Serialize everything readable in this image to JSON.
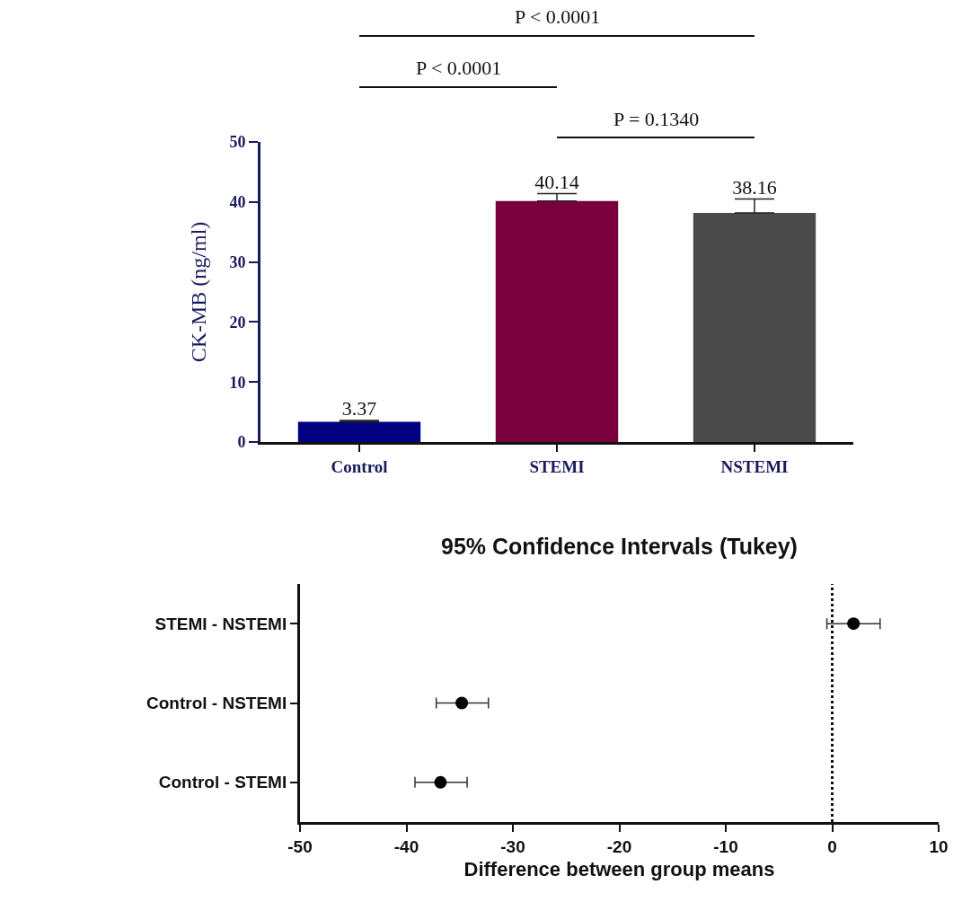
{
  "chart_data": [
    {
      "type": "bar",
      "categories": [
        "Control",
        "STEMI",
        "NSTEMI"
      ],
      "values": [
        3.37,
        40.14,
        38.16
      ],
      "colors": [
        "#000080",
        "#7a003c",
        "#4a4a4a"
      ],
      "errors": [
        [
          3.37,
          3.6
        ],
        [
          40.14,
          41.4
        ],
        [
          38.16,
          40.5
        ]
      ],
      "data_labels": true,
      "ylabel": "CK-MB (ng/ml)",
      "ylim": [
        0,
        50
      ],
      "yticks": [
        0,
        10,
        20,
        30,
        40,
        50
      ],
      "annotations": [
        "P < 0.0001",
        "P < 0.0001",
        "P = 0.1340"
      ]
    },
    {
      "type": "scatter",
      "title": "95% Confidence Intervals (Tukey)",
      "categories": [
        "STEMI - NSTEMI",
        "Control - NSTEMI",
        "Control - STEMI"
      ],
      "values": [
        2,
        -34.8,
        -36.8
      ],
      "color": "#000000",
      "errors": [
        [
          -0.5,
          4.5
        ],
        [
          -37.2,
          -32.3
        ],
        [
          -39.2,
          -34.3
        ]
      ],
      "orientation": "horizontal",
      "marker": "circle",
      "xlabel": "Difference between group means",
      "xlim": [
        -50,
        10
      ],
      "xticks": [
        -50,
        -40,
        -30,
        -20,
        -10,
        0,
        10
      ],
      "ref_lines": [
        {
          "axis": "x",
          "value": 0,
          "line_style": "dotted"
        }
      ]
    }
  ]
}
